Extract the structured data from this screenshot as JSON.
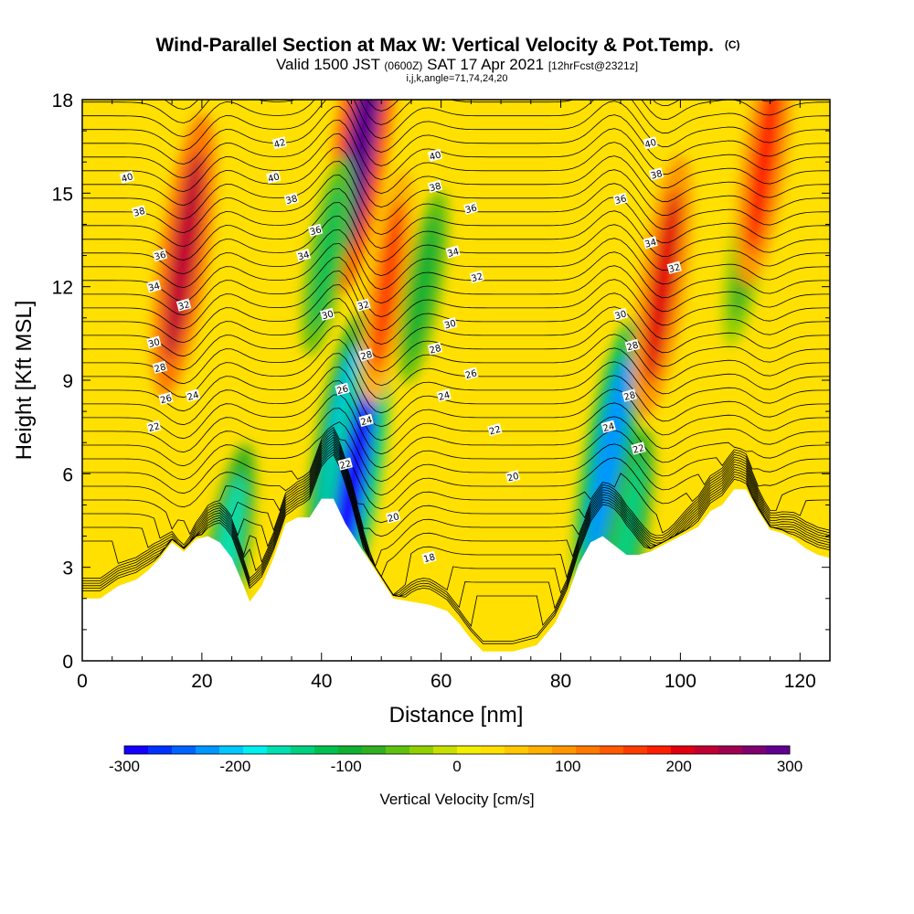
{
  "chart_data": {
    "type": "heatmap",
    "title": "Wind-Parallel Section at Max W: Vertical Velocity & Pot.Temp.",
    "title_mark": "(C)",
    "subtitle": {
      "prefix": "Valid 1500 JST",
      "utc": "(0600Z)",
      "date": "SAT 17 Apr 2021",
      "fcst": "[12hrFcst@2321z]"
    },
    "params": "i,j,k,angle=71,74,24,20",
    "xlabel": "Distance [nm]",
    "ylabel": "Height [Kft MSL]",
    "xlim": [
      0,
      125
    ],
    "ylim": [
      0,
      18
    ],
    "x_ticks": [
      "0",
      "20",
      "40",
      "60",
      "80",
      "100",
      "120"
    ],
    "y_ticks": [
      "0",
      "3",
      "6",
      "9",
      "12",
      "15",
      "18"
    ],
    "colorbar": {
      "label": "Vertical Velocity [cm/s]",
      "range": [
        -300,
        300
      ],
      "tick_labels": [
        "-300",
        "-200",
        "-100",
        "0",
        "100",
        "200",
        "300"
      ],
      "colors": [
        "#1400ff",
        "#0032ff",
        "#0064ff",
        "#0096ff",
        "#00c8ff",
        "#00f0f0",
        "#00e0b0",
        "#00d080",
        "#00c050",
        "#10b030",
        "#30b020",
        "#60c010",
        "#90d000",
        "#c8e000",
        "#f0f000",
        "#ffe000",
        "#ffc800",
        "#ffb000",
        "#ff9600",
        "#ff7800",
        "#ff5a00",
        "#ff3c00",
        "#ff1e00",
        "#e00010",
        "#c00030",
        "#a00050",
        "#800070",
        "#600090"
      ]
    },
    "terrain": [
      [
        0,
        2
      ],
      [
        3,
        2
      ],
      [
        6,
        2.4
      ],
      [
        9,
        2.6
      ],
      [
        11,
        2.9
      ],
      [
        13,
        3.3
      ],
      [
        15,
        3.8
      ],
      [
        17,
        3.5
      ],
      [
        19,
        3.9
      ],
      [
        21,
        4
      ],
      [
        23,
        3.8
      ],
      [
        25,
        3.3
      ],
      [
        27,
        2.4
      ],
      [
        28,
        1.9
      ],
      [
        30,
        2.4
      ],
      [
        32,
        3.3
      ],
      [
        34,
        4.4
      ],
      [
        36,
        4.6
      ],
      [
        38,
        4.6
      ],
      [
        40,
        5.2
      ],
      [
        42,
        5.2
      ],
      [
        44,
        4.4
      ],
      [
        46,
        3.8
      ],
      [
        48,
        3.2
      ],
      [
        50,
        2.6
      ],
      [
        52,
        2
      ],
      [
        55,
        1.9
      ],
      [
        58,
        1.8
      ],
      [
        61,
        1.6
      ],
      [
        63,
        1.2
      ],
      [
        65,
        0.7
      ],
      [
        67,
        0.3
      ],
      [
        72,
        0.3
      ],
      [
        76,
        0.5
      ],
      [
        79,
        1.2
      ],
      [
        81,
        2
      ],
      [
        83,
        3.1
      ],
      [
        85,
        3.8
      ],
      [
        87,
        4
      ],
      [
        89,
        3.7
      ],
      [
        91,
        3.4
      ],
      [
        93,
        3.4
      ],
      [
        95,
        3.5
      ],
      [
        97,
        3.7
      ],
      [
        99,
        3.9
      ],
      [
        101,
        4.1
      ],
      [
        103,
        4.3
      ],
      [
        105,
        4.8
      ],
      [
        107,
        5
      ],
      [
        109,
        5.5
      ],
      [
        111,
        5.5
      ],
      [
        113,
        4.8
      ],
      [
        115,
        4.2
      ],
      [
        117,
        4.1
      ],
      [
        119,
        3.9
      ],
      [
        121,
        3.6
      ],
      [
        123,
        3.4
      ],
      [
        125,
        3.3
      ]
    ],
    "vertical_velocity_features": [
      {
        "x": 17,
        "z": 13,
        "w": 230
      },
      {
        "x": 24,
        "z": 3.2,
        "w": -160
      },
      {
        "x": 43,
        "z": 7,
        "w": -200
      },
      {
        "x": 45,
        "z": 5.5,
        "w": -280
      },
      {
        "x": 47,
        "z": 17,
        "w": 290
      },
      {
        "x": 41,
        "z": 13,
        "w": -110
      },
      {
        "x": 51,
        "z": 12,
        "w": 160
      },
      {
        "x": 57,
        "z": 12,
        "w": -100
      },
      {
        "x": 88,
        "z": 6.5,
        "w": -220
      },
      {
        "x": 91,
        "z": 4,
        "w": -130
      },
      {
        "x": 97,
        "z": 12,
        "w": 200
      },
      {
        "x": 111,
        "z": 13,
        "w": -80
      },
      {
        "x": 114,
        "z": 16,
        "w": 180
      }
    ],
    "theta_contour_labels": [
      {
        "x": 33,
        "z": 16.6,
        "text": "42"
      },
      {
        "x": 7.5,
        "z": 15.5,
        "text": "40"
      },
      {
        "x": 32,
        "z": 15.5,
        "text": "40"
      },
      {
        "x": 59,
        "z": 16.2,
        "text": "40"
      },
      {
        "x": 95,
        "z": 16.6,
        "text": "40"
      },
      {
        "x": 9.5,
        "z": 14.4,
        "text": "38"
      },
      {
        "x": 35,
        "z": 14.8,
        "text": "38"
      },
      {
        "x": 59,
        "z": 15.2,
        "text": "38"
      },
      {
        "x": 96,
        "z": 15.6,
        "text": "38"
      },
      {
        "x": 13,
        "z": 13,
        "text": "36"
      },
      {
        "x": 39,
        "z": 13.8,
        "text": "36"
      },
      {
        "x": 65,
        "z": 14.5,
        "text": "36"
      },
      {
        "x": 90,
        "z": 14.8,
        "text": "36"
      },
      {
        "x": 12,
        "z": 12,
        "text": "34"
      },
      {
        "x": 37,
        "z": 13,
        "text": "34"
      },
      {
        "x": 62,
        "z": 13.1,
        "text": "34"
      },
      {
        "x": 95,
        "z": 13.4,
        "text": "34"
      },
      {
        "x": 17,
        "z": 11.4,
        "text": "32"
      },
      {
        "x": 47,
        "z": 11.4,
        "text": "32"
      },
      {
        "x": 66,
        "z": 12.3,
        "text": "32"
      },
      {
        "x": 99,
        "z": 12.6,
        "text": "32"
      },
      {
        "x": 12,
        "z": 10.2,
        "text": "30"
      },
      {
        "x": 41,
        "z": 11.1,
        "text": "30"
      },
      {
        "x": 61.5,
        "z": 10.8,
        "text": "30"
      },
      {
        "x": 90,
        "z": 11.1,
        "text": "30"
      },
      {
        "x": 13,
        "z": 9.4,
        "text": "28"
      },
      {
        "x": 47.5,
        "z": 9.8,
        "text": "28"
      },
      {
        "x": 59,
        "z": 10,
        "text": "28"
      },
      {
        "x": 92,
        "z": 10.1,
        "text": "28"
      },
      {
        "x": 43.5,
        "z": 8.7,
        "text": "26"
      },
      {
        "x": 65,
        "z": 9.2,
        "text": "26"
      },
      {
        "x": 14,
        "z": 8.4,
        "text": "26"
      },
      {
        "x": 91.5,
        "z": 8.5,
        "text": "28"
      },
      {
        "x": 18.5,
        "z": 8.5,
        "text": "24"
      },
      {
        "x": 47.5,
        "z": 7.7,
        "text": "24"
      },
      {
        "x": 60.5,
        "z": 8.5,
        "text": "24"
      },
      {
        "x": 88,
        "z": 7.5,
        "text": "24"
      },
      {
        "x": 12,
        "z": 7.5,
        "text": "22"
      },
      {
        "x": 44,
        "z": 6.3,
        "text": "22"
      },
      {
        "x": 69,
        "z": 7.4,
        "text": "22"
      },
      {
        "x": 93,
        "z": 6.8,
        "text": "22"
      },
      {
        "x": 52,
        "z": 4.6,
        "text": "20"
      },
      {
        "x": 72,
        "z": 5.9,
        "text": "20"
      },
      {
        "x": 58,
        "z": 3.3,
        "text": "18"
      }
    ]
  }
}
